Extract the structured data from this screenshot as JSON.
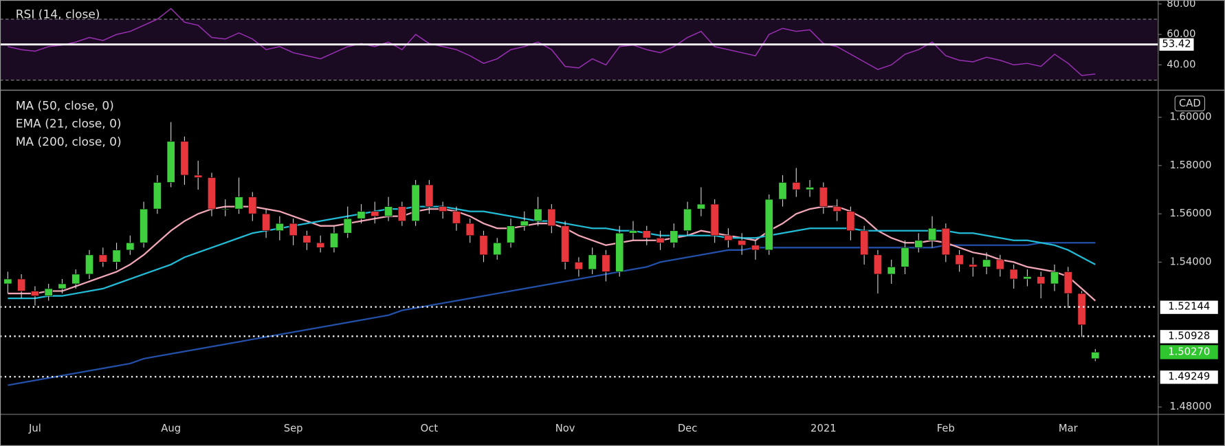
{
  "chart_data": [
    {
      "type": "line",
      "series": [
        {
          "name": "RSI (14, close)",
          "color": "#9b30b5",
          "values": [
            52,
            50,
            49,
            52,
            53,
            55,
            58,
            56,
            60,
            62,
            66,
            70,
            77,
            68,
            66,
            58,
            57,
            61,
            57,
            50,
            52,
            48,
            46,
            44,
            48,
            52,
            54,
            52,
            55,
            50,
            60,
            54,
            52,
            50,
            46,
            41,
            44,
            50,
            52,
            55,
            50,
            39,
            38,
            44,
            40,
            52,
            53,
            50,
            48,
            52,
            58,
            62,
            52,
            50,
            48,
            46,
            60,
            64,
            62,
            63,
            54,
            52,
            47,
            42,
            37,
            40,
            47,
            50,
            55,
            46,
            43,
            42,
            45,
            43,
            40,
            41,
            39,
            47,
            41,
            33,
            34
          ]
        }
      ],
      "ylim": [
        23.6,
        82.6
      ],
      "yticks": [
        {
          "value": 40,
          "label": "40.00"
        },
        {
          "value": 60,
          "label": "60.00"
        },
        {
          "value": 80,
          "label": "80.00"
        }
      ],
      "band": [
        30,
        70
      ],
      "band_color": "#1a0a22",
      "marker_line": 53.42
    },
    {
      "type": "candlestick",
      "unit": "CAD",
      "categories": [
        null,
        null,
        "Jul",
        null,
        null,
        null,
        null,
        null,
        null,
        null,
        null,
        null,
        "Aug",
        null,
        null,
        null,
        null,
        null,
        null,
        null,
        null,
        "Sep",
        null,
        null,
        null,
        null,
        null,
        null,
        null,
        null,
        null,
        "Oct",
        null,
        null,
        null,
        null,
        null,
        null,
        null,
        null,
        null,
        "Nov",
        null,
        null,
        null,
        null,
        null,
        null,
        null,
        null,
        "Dec",
        null,
        null,
        null,
        null,
        null,
        null,
        null,
        null,
        null,
        "2021",
        null,
        null,
        null,
        null,
        null,
        null,
        null,
        null,
        "Feb",
        null,
        null,
        null,
        null,
        null,
        null,
        null,
        null,
        "Mar",
        null,
        null
      ],
      "open": [
        1.531,
        1.533,
        1.528,
        1.526,
        1.529,
        1.531,
        1.535,
        1.543,
        1.54,
        1.545,
        1.548,
        1.562,
        1.573,
        1.59,
        1.576,
        1.575,
        1.562,
        1.562,
        1.567,
        1.56,
        1.553,
        1.556,
        1.551,
        1.548,
        1.546,
        1.552,
        1.558,
        1.561,
        1.559,
        1.563,
        1.557,
        1.572,
        1.563,
        1.561,
        1.556,
        1.551,
        1.543,
        1.548,
        1.555,
        1.557,
        1.562,
        1.555,
        1.54,
        1.537,
        1.543,
        1.536,
        1.552,
        1.553,
        1.55,
        1.548,
        1.553,
        1.562,
        1.564,
        1.551,
        1.549,
        1.547,
        1.545,
        1.566,
        1.573,
        1.57,
        1.571,
        1.563,
        1.561,
        1.553,
        1.543,
        1.535,
        1.538,
        1.546,
        1.549,
        1.554,
        1.543,
        1.539,
        1.538,
        1.541,
        1.537,
        1.533,
        1.534,
        1.531,
        1.536,
        1.527,
        1.5
      ],
      "high": [
        1.536,
        1.535,
        1.53,
        1.531,
        1.533,
        1.537,
        1.545,
        1.546,
        1.548,
        1.551,
        1.565,
        1.576,
        1.598,
        1.592,
        1.582,
        1.577,
        1.566,
        1.575,
        1.569,
        1.562,
        1.559,
        1.558,
        1.553,
        1.551,
        1.555,
        1.563,
        1.564,
        1.565,
        1.567,
        1.565,
        1.574,
        1.574,
        1.565,
        1.563,
        1.558,
        1.553,
        1.55,
        1.558,
        1.561,
        1.567,
        1.564,
        1.557,
        1.542,
        1.546,
        1.545,
        1.555,
        1.557,
        1.555,
        1.553,
        1.556,
        1.565,
        1.571,
        1.566,
        1.554,
        1.552,
        1.549,
        1.568,
        1.576,
        1.579,
        1.574,
        1.573,
        1.566,
        1.563,
        1.555,
        1.545,
        1.541,
        1.549,
        1.552,
        1.559,
        1.556,
        1.545,
        1.542,
        1.544,
        1.543,
        1.539,
        1.537,
        1.536,
        1.539,
        1.538,
        1.528,
        1.504
      ],
      "low": [
        1.527,
        1.525,
        1.522,
        1.524,
        1.527,
        1.529,
        1.533,
        1.538,
        1.537,
        1.543,
        1.546,
        1.56,
        1.571,
        1.572,
        1.57,
        1.559,
        1.559,
        1.56,
        1.557,
        1.55,
        1.549,
        1.547,
        1.545,
        1.544,
        1.544,
        1.55,
        1.556,
        1.556,
        1.557,
        1.555,
        1.555,
        1.56,
        1.558,
        1.553,
        1.548,
        1.54,
        1.541,
        1.546,
        1.553,
        1.555,
        1.552,
        1.537,
        1.534,
        1.535,
        1.532,
        1.534,
        1.549,
        1.547,
        1.545,
        1.546,
        1.551,
        1.559,
        1.548,
        1.546,
        1.543,
        1.541,
        1.543,
        1.563,
        1.567,
        1.567,
        1.56,
        1.557,
        1.549,
        1.539,
        1.527,
        1.531,
        1.535,
        1.544,
        1.546,
        1.54,
        1.536,
        1.534,
        1.535,
        1.534,
        1.529,
        1.53,
        1.525,
        1.528,
        1.521,
        1.509,
        1.499
      ],
      "close": [
        1.533,
        1.528,
        1.526,
        1.529,
        1.531,
        1.535,
        1.543,
        1.54,
        1.545,
        1.548,
        1.562,
        1.573,
        1.59,
        1.576,
        1.575,
        1.562,
        1.562,
        1.567,
        1.56,
        1.553,
        1.556,
        1.551,
        1.548,
        1.546,
        1.552,
        1.558,
        1.561,
        1.559,
        1.563,
        1.557,
        1.572,
        1.563,
        1.561,
        1.556,
        1.551,
        1.543,
        1.548,
        1.555,
        1.557,
        1.562,
        1.555,
        1.54,
        1.537,
        1.543,
        1.536,
        1.552,
        1.553,
        1.55,
        1.548,
        1.553,
        1.562,
        1.564,
        1.551,
        1.549,
        1.547,
        1.545,
        1.566,
        1.573,
        1.57,
        1.571,
        1.563,
        1.561,
        1.553,
        1.543,
        1.535,
        1.538,
        1.546,
        1.549,
        1.554,
        1.543,
        1.539,
        1.538,
        1.541,
        1.537,
        1.533,
        1.534,
        1.531,
        1.536,
        1.527,
        1.514,
        1.5027
      ],
      "up_color": "#3fcf3f",
      "down_color": "#e8373c",
      "lines": [
        {
          "name": "MA (50, close, 0)",
          "color": "#22bcd6",
          "values": [
            1.525,
            1.525,
            1.525,
            1.526,
            1.526,
            1.527,
            1.528,
            1.529,
            1.531,
            1.533,
            1.535,
            1.537,
            1.539,
            1.542,
            1.544,
            1.546,
            1.548,
            1.55,
            1.552,
            1.553,
            1.554,
            1.555,
            1.556,
            1.557,
            1.558,
            1.559,
            1.56,
            1.561,
            1.562,
            1.562,
            1.563,
            1.563,
            1.563,
            1.562,
            1.561,
            1.561,
            1.56,
            1.559,
            1.558,
            1.557,
            1.557,
            1.556,
            1.555,
            1.554,
            1.554,
            1.553,
            1.553,
            1.552,
            1.551,
            1.551,
            1.551,
            1.551,
            1.551,
            1.55,
            1.55,
            1.55,
            1.551,
            1.552,
            1.553,
            1.554,
            1.554,
            1.554,
            1.554,
            1.553,
            1.553,
            1.553,
            1.553,
            1.553,
            1.553,
            1.553,
            1.552,
            1.552,
            1.551,
            1.55,
            1.549,
            1.549,
            1.548,
            1.547,
            1.545,
            1.542,
            1.539
          ]
        },
        {
          "name": "EMA (21, close, 0)",
          "color": "#f2a7b7",
          "values": [
            1.527,
            1.527,
            1.527,
            1.528,
            1.528,
            1.53,
            1.532,
            1.534,
            1.536,
            1.539,
            1.543,
            1.548,
            1.553,
            1.557,
            1.56,
            1.562,
            1.563,
            1.563,
            1.563,
            1.562,
            1.561,
            1.559,
            1.557,
            1.555,
            1.555,
            1.556,
            1.557,
            1.558,
            1.559,
            1.559,
            1.561,
            1.562,
            1.562,
            1.561,
            1.559,
            1.556,
            1.554,
            1.554,
            1.555,
            1.556,
            1.556,
            1.554,
            1.551,
            1.549,
            1.547,
            1.548,
            1.549,
            1.549,
            1.549,
            1.55,
            1.551,
            1.553,
            1.552,
            1.551,
            1.55,
            1.549,
            1.553,
            1.556,
            1.56,
            1.562,
            1.563,
            1.563,
            1.561,
            1.558,
            1.553,
            1.55,
            1.548,
            1.548,
            1.549,
            1.548,
            1.546,
            1.544,
            1.543,
            1.541,
            1.54,
            1.538,
            1.537,
            1.536,
            1.534,
            1.529,
            1.524
          ]
        },
        {
          "name": "MA (200, close, 0)",
          "color": "#2350a8",
          "values": [
            1.489,
            1.49,
            1.491,
            1.492,
            1.493,
            1.494,
            1.495,
            1.496,
            1.497,
            1.498,
            1.5,
            1.501,
            1.502,
            1.503,
            1.504,
            1.505,
            1.506,
            1.507,
            1.508,
            1.509,
            1.51,
            1.511,
            1.512,
            1.513,
            1.514,
            1.515,
            1.516,
            1.517,
            1.518,
            1.52,
            1.521,
            1.522,
            1.523,
            1.524,
            1.525,
            1.526,
            1.527,
            1.528,
            1.529,
            1.53,
            1.531,
            1.532,
            1.533,
            1.534,
            1.535,
            1.536,
            1.537,
            1.538,
            1.54,
            1.541,
            1.542,
            1.543,
            1.544,
            1.545,
            1.545,
            1.546,
            1.546,
            1.546,
            1.546,
            1.546,
            1.546,
            1.546,
            1.546,
            1.546,
            1.546,
            1.546,
            1.546,
            1.546,
            1.546,
            1.547,
            1.547,
            1.547,
            1.547,
            1.547,
            1.547,
            1.547,
            1.548,
            1.548,
            1.548,
            1.548,
            1.548
          ]
        }
      ],
      "levels": [
        {
          "value": 1.52144,
          "label": "1.52144"
        },
        {
          "value": 1.50928,
          "label": "1.50928"
        },
        {
          "value": 1.49249,
          "label": "1.49249"
        }
      ],
      "last": {
        "value": 1.5027,
        "label": "1.50270",
        "color": "#2fc62f"
      },
      "ylim": [
        1.4771,
        1.6107
      ],
      "yticks": [
        {
          "value": 1.48,
          "label": "1.48000"
        },
        {
          "value": 1.54,
          "label": "1.54000"
        },
        {
          "value": 1.56,
          "label": "1.56000"
        },
        {
          "value": 1.58,
          "label": "1.58000"
        },
        {
          "value": 1.6,
          "label": "1.60000"
        }
      ]
    }
  ]
}
